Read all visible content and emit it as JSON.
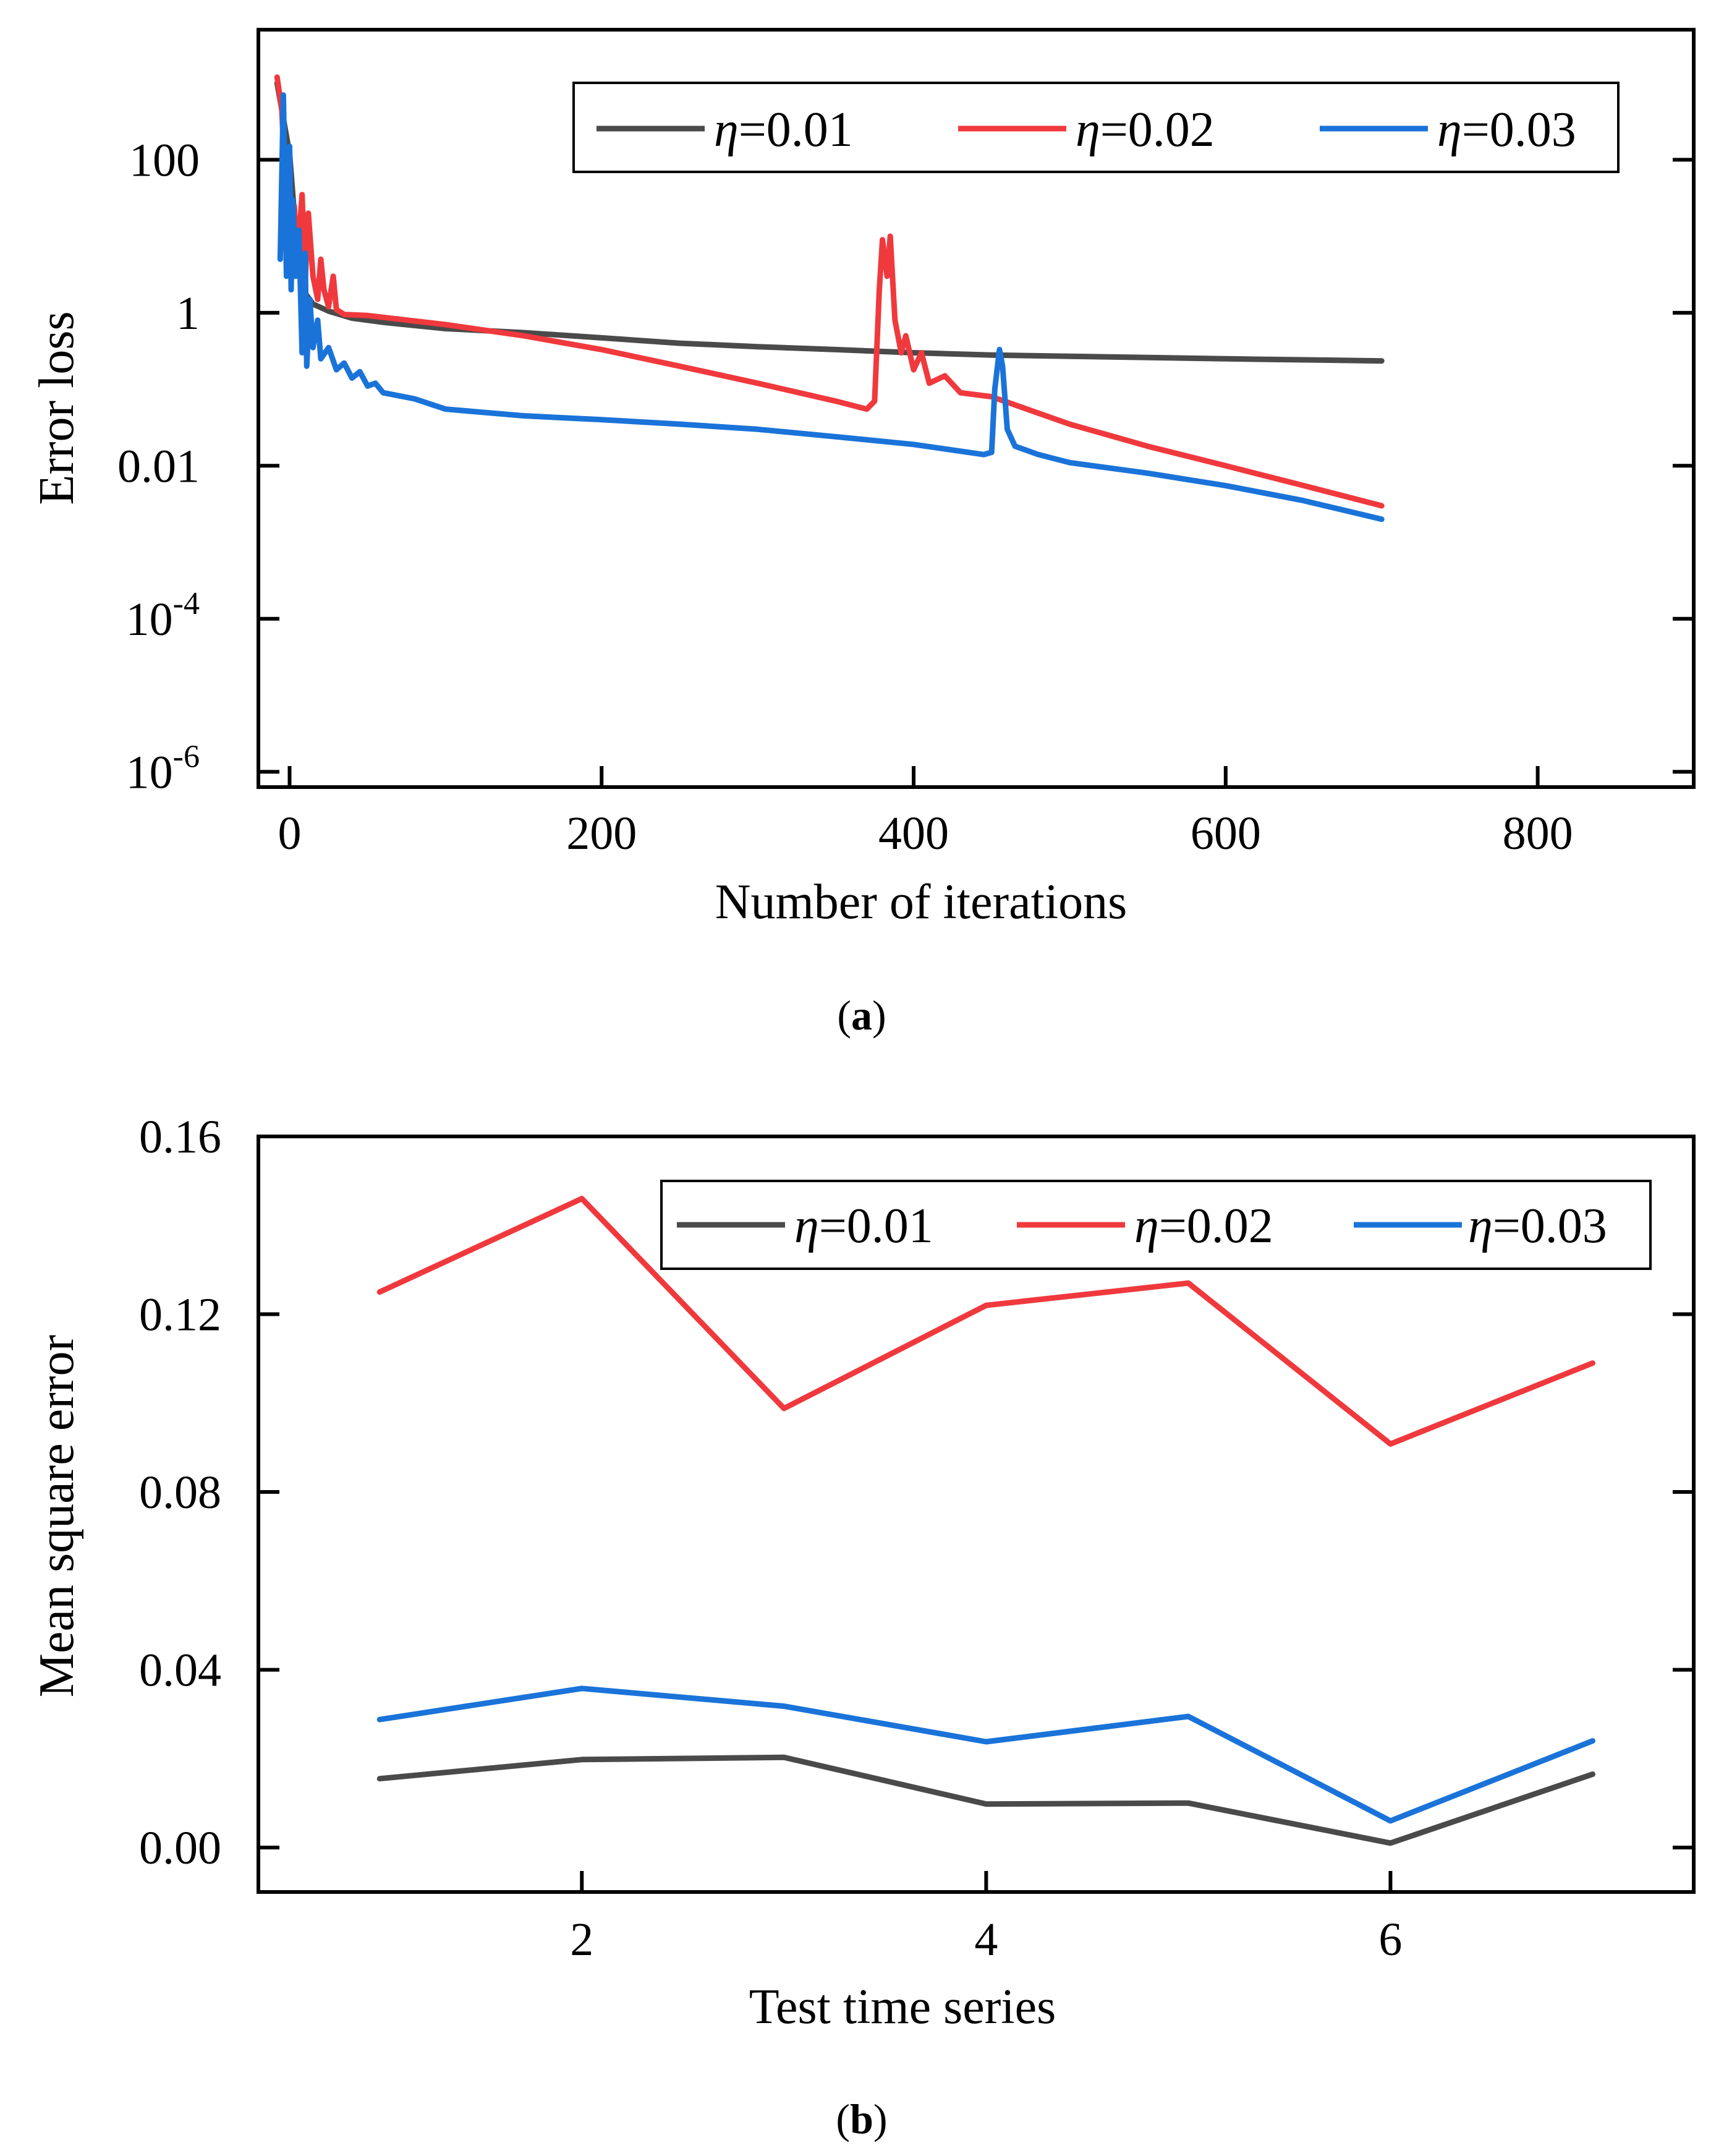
{
  "chart_data": [
    {
      "type": "line",
      "panel_label": "a",
      "xlabel": "Number of iterations",
      "ylabel": "Error loss",
      "xlim": [
        -20,
        900
      ],
      "ylim_exponent": [
        -6.2,
        3.7
      ],
      "yscale": "log",
      "x_ticks": [
        0,
        200,
        400,
        600,
        800
      ],
      "x_tick_labels": [
        "0",
        "200",
        "400",
        "600",
        "800"
      ],
      "y_ticks": [
        {
          "exp": 2,
          "base": "100",
          "sup": ""
        },
        {
          "exp": 0,
          "base": "1",
          "sup": ""
        },
        {
          "exp": -2,
          "base": "0.01",
          "sup": ""
        },
        {
          "exp": -4,
          "base": "10",
          "sup": "-4"
        },
        {
          "exp": -6,
          "base": "10",
          "sup": "-6"
        }
      ],
      "legend_position": "top-right",
      "series": [
        {
          "name": "η=0.01",
          "legend_symbol": "η",
          "legend_value": "=0.01",
          "color": "#4a4a4a",
          "points": [
            [
              -8,
              1000
            ],
            [
              0,
              120
            ],
            [
              5,
              6
            ],
            [
              10,
              1.8
            ],
            [
              15,
              1.3
            ],
            [
              25,
              1.05
            ],
            [
              40,
              0.85
            ],
            [
              60,
              0.75
            ],
            [
              100,
              0.62
            ],
            [
              150,
              0.55
            ],
            [
              200,
              0.47
            ],
            [
              250,
              0.4
            ],
            [
              300,
              0.36
            ],
            [
              350,
              0.33
            ],
            [
              400,
              0.3
            ],
            [
              450,
              0.28
            ],
            [
              500,
              0.27
            ],
            [
              600,
              0.25
            ],
            [
              700,
              0.235
            ]
          ]
        },
        {
          "name": "η=0.02",
          "legend_symbol": "η",
          "legend_value": "=0.02",
          "color": "#f0393d",
          "points": [
            [
              -8,
              1200
            ],
            [
              -5,
              450
            ],
            [
              -3,
              60
            ],
            [
              0,
              10
            ],
            [
              3,
              25
            ],
            [
              5,
              5
            ],
            [
              8,
              35
            ],
            [
              10,
              2.5
            ],
            [
              12,
              20
            ],
            [
              15,
              3
            ],
            [
              18,
              1.5
            ],
            [
              20,
              5
            ],
            [
              22,
              2
            ],
            [
              25,
              1.2
            ],
            [
              28,
              3
            ],
            [
              30,
              1.1
            ],
            [
              35,
              0.95
            ],
            [
              50,
              0.92
            ],
            [
              100,
              0.7
            ],
            [
              150,
              0.5
            ],
            [
              200,
              0.33
            ],
            [
              250,
              0.2
            ],
            [
              300,
              0.12
            ],
            [
              350,
              0.07
            ],
            [
              370,
              0.055
            ],
            [
              375,
              0.07
            ],
            [
              378,
              2
            ],
            [
              380,
              9
            ],
            [
              383,
              3
            ],
            [
              385,
              10
            ],
            [
              388,
              0.8
            ],
            [
              392,
              0.3
            ],
            [
              395,
              0.5
            ],
            [
              400,
              0.18
            ],
            [
              405,
              0.3
            ],
            [
              410,
              0.12
            ],
            [
              420,
              0.15
            ],
            [
              430,
              0.09
            ],
            [
              450,
              0.08
            ],
            [
              500,
              0.035
            ],
            [
              550,
              0.018
            ],
            [
              600,
              0.01
            ],
            [
              650,
              0.0055
            ],
            [
              700,
              0.003
            ]
          ]
        },
        {
          "name": "η=0.03",
          "legend_symbol": "η",
          "legend_value": "=0.03",
          "color": "#1a73d9",
          "points": [
            [
              -6,
              5
            ],
            [
              -4,
              700
            ],
            [
              -2,
              3
            ],
            [
              0,
              150
            ],
            [
              1,
              2
            ],
            [
              2,
              30
            ],
            [
              4,
              3
            ],
            [
              6,
              12
            ],
            [
              8,
              0.3
            ],
            [
              10,
              6
            ],
            [
              11,
              0.2
            ],
            [
              13,
              1.5
            ],
            [
              15,
              0.35
            ],
            [
              18,
              0.8
            ],
            [
              20,
              0.25
            ],
            [
              25,
              0.35
            ],
            [
              30,
              0.18
            ],
            [
              35,
              0.22
            ],
            [
              40,
              0.14
            ],
            [
              45,
              0.17
            ],
            [
              50,
              0.11
            ],
            [
              55,
              0.12
            ],
            [
              60,
              0.09
            ],
            [
              80,
              0.075
            ],
            [
              100,
              0.055
            ],
            [
              150,
              0.045
            ],
            [
              200,
              0.04
            ],
            [
              250,
              0.035
            ],
            [
              300,
              0.03
            ],
            [
              350,
              0.024
            ],
            [
              400,
              0.019
            ],
            [
              445,
              0.014
            ],
            [
              450,
              0.015
            ],
            [
              452,
              0.1
            ],
            [
              455,
              0.33
            ],
            [
              457,
              0.2
            ],
            [
              460,
              0.03
            ],
            [
              465,
              0.018
            ],
            [
              480,
              0.014
            ],
            [
              500,
              0.011
            ],
            [
              550,
              0.008
            ],
            [
              600,
              0.0055
            ],
            [
              650,
              0.0035
            ],
            [
              700,
              0.002
            ]
          ]
        }
      ]
    },
    {
      "type": "line",
      "panel_label": "b",
      "xlabel": "Test time series",
      "ylabel": "Mean square error",
      "xlim": [
        0.4,
        7.5
      ],
      "ylim": [
        -0.01,
        0.16
      ],
      "x_ticks": [
        2,
        4,
        6
      ],
      "x_tick_labels": [
        "2",
        "4",
        "6"
      ],
      "y_ticks": [
        0.0,
        0.04,
        0.08,
        0.12,
        0.16
      ],
      "y_tick_labels": [
        "0.00",
        "0.04",
        "0.08",
        "0.12",
        "0.16"
      ],
      "legend_position": "top-right",
      "categories": [
        1,
        2,
        3,
        4,
        5,
        6,
        7
      ],
      "series": [
        {
          "name": "η=0.01",
          "legend_symbol": "η",
          "legend_value": "=0.01",
          "color": "#4a4a4a",
          "values": [
            0.0155,
            0.0198,
            0.0203,
            0.0098,
            0.01,
            0.001,
            0.0165
          ]
        },
        {
          "name": "η=0.02",
          "legend_symbol": "η",
          "legend_value": "=0.02",
          "color": "#f0393d",
          "values": [
            0.125,
            0.146,
            0.0988,
            0.122,
            0.127,
            0.0908,
            0.109
          ]
        },
        {
          "name": "η=0.03",
          "legend_symbol": "η",
          "legend_value": "=0.03",
          "color": "#1a73d9",
          "values": [
            0.0288,
            0.0358,
            0.0318,
            0.0238,
            0.0295,
            0.006,
            0.024
          ]
        }
      ]
    }
  ]
}
